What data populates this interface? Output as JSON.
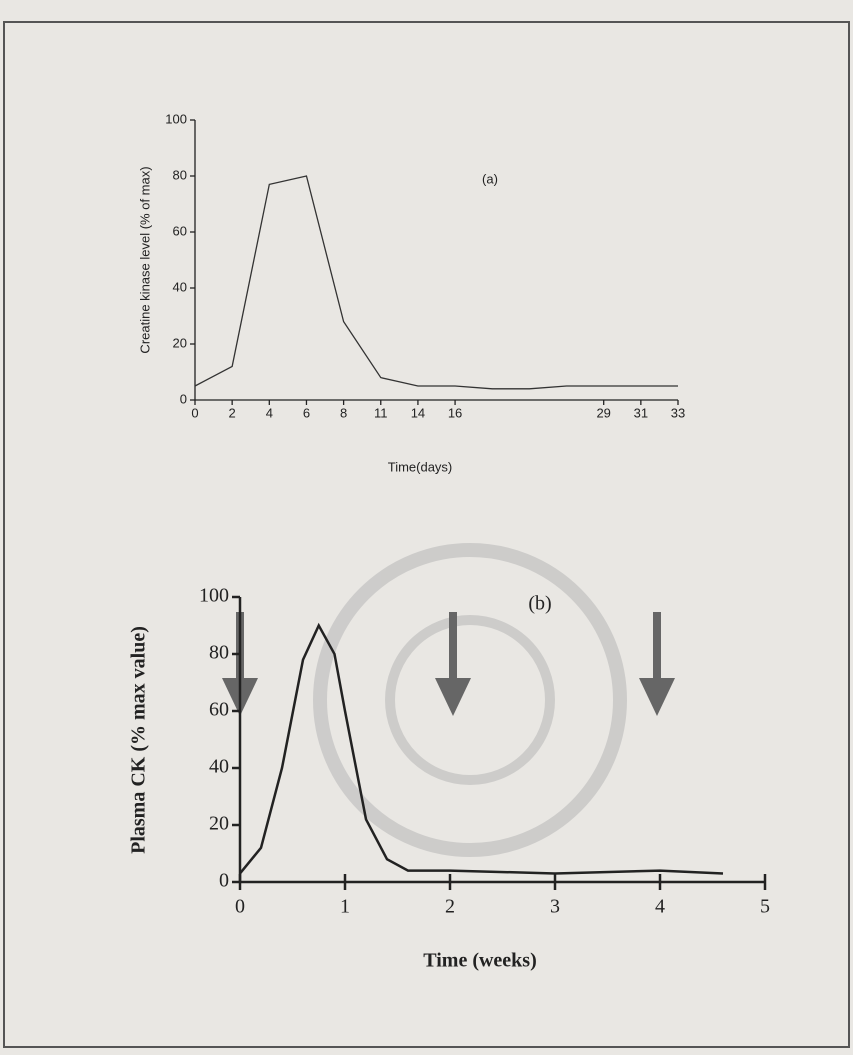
{
  "chart_data": [
    {
      "type": "line",
      "label": "(a)",
      "xlabel": "Time(days)",
      "ylabel": "Creatine kinase level (% of max)",
      "categories": [
        "0",
        "2",
        "4",
        "6",
        "8",
        "11",
        "14",
        "16",
        null,
        null,
        null,
        "29",
        "31",
        "33"
      ],
      "values": [
        5,
        12,
        77,
        80,
        28,
        8,
        5,
        5,
        4,
        4,
        5,
        5,
        5,
        5
      ],
      "ylim": [
        0,
        100
      ],
      "yticks": [
        0,
        20,
        40,
        60,
        80,
        100
      ],
      "color": "#333333"
    },
    {
      "type": "line",
      "label": "(b)",
      "xlabel": "Time  (weeks)",
      "ylabel": "Plasma CK (% max value)",
      "x": [
        0,
        0.2,
        0.4,
        0.6,
        0.75,
        0.9,
        1.0,
        1.2,
        1.4,
        1.6,
        2,
        3,
        4,
        4.6
      ],
      "values": [
        3,
        12,
        40,
        78,
        90,
        80,
        60,
        22,
        8,
        4,
        4,
        3,
        4,
        3
      ],
      "xlim": [
        0,
        5
      ],
      "xticks": [
        0,
        1,
        2,
        3,
        4,
        5
      ],
      "ylim": [
        0,
        100
      ],
      "yticks": [
        0,
        20,
        40,
        60,
        80,
        100
      ],
      "color": "#222222"
    }
  ]
}
